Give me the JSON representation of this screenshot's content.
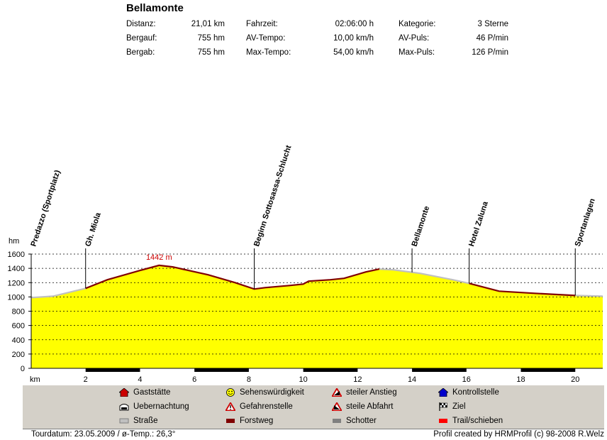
{
  "header": {
    "title": "Bellamonte",
    "stats": [
      {
        "label": "Distanz:",
        "value": "21,01 km"
      },
      {
        "label": "Bergauf:",
        "value": "755 hm"
      },
      {
        "label": "Bergab:",
        "value": "755 hm"
      },
      {
        "label": "Fahrzeit:",
        "value": "02:06:00 h"
      },
      {
        "label": "AV-Tempo:",
        "value": "10,00 km/h"
      },
      {
        "label": "Max-Tempo:",
        "value": "54,00 km/h"
      },
      {
        "label": "Kategorie:",
        "value": "3 Sterne"
      },
      {
        "label": "AV-Puls:",
        "value": "46 P/min"
      },
      {
        "label": "Max-Puls:",
        "value": "126 P/min"
      }
    ]
  },
  "chart_data": {
    "type": "area",
    "xlabel": "km",
    "ylabel": "hm",
    "xlim": [
      0,
      21.01
    ],
    "ylim": [
      0,
      1600
    ],
    "x_ticks": [
      2,
      4,
      6,
      8,
      10,
      12,
      14,
      16,
      18,
      20
    ],
    "y_ticks": [
      0,
      200,
      400,
      600,
      800,
      1000,
      1200,
      1400,
      1600
    ],
    "grid": "horizontal-dotted",
    "fill_color": "#ffff00",
    "profile": {
      "x": [
        0,
        0.8,
        2.0,
        2.8,
        4.0,
        4.7,
        5.2,
        6.5,
        7.5,
        8.2,
        8.6,
        9.5,
        10.0,
        10.2,
        11.0,
        11.5,
        12.3,
        12.8,
        13.3,
        14.3,
        15.5,
        16.1,
        17.2,
        18.5,
        20.0,
        21.01
      ],
      "y": [
        990,
        1010,
        1120,
        1240,
        1370,
        1442,
        1420,
        1310,
        1200,
        1110,
        1130,
        1160,
        1180,
        1220,
        1240,
        1260,
        1350,
        1390,
        1380,
        1330,
        1240,
        1190,
        1080,
        1050,
        1020,
        1010
      ]
    },
    "surfaces": [
      {
        "from": 0,
        "to": 2.0,
        "type": "Straße",
        "color": "#c0c0c0"
      },
      {
        "from": 2.0,
        "to": 12.8,
        "type": "Forstweg",
        "color": "#800000"
      },
      {
        "from": 12.8,
        "to": 16.1,
        "type": "Straße",
        "color": "#c0c0c0"
      },
      {
        "from": 16.1,
        "to": 20.0,
        "type": "Forstweg",
        "color": "#800000"
      },
      {
        "from": 20.0,
        "to": 21.01,
        "type": "Straße",
        "color": "#c0c0c0"
      }
    ],
    "km_bar_segments": [
      [
        2.0,
        4.0
      ],
      [
        6.0,
        8.0
      ],
      [
        10.0,
        12.0
      ],
      [
        14.0,
        16.0
      ],
      [
        18.0,
        20.0
      ]
    ],
    "waypoints": [
      {
        "x": 0.0,
        "label": "Predazzo (Sportplatz)"
      },
      {
        "x": 2.0,
        "label": "Gh. Miola"
      },
      {
        "x": 8.2,
        "label": "Beginn Sottosassa-Schlucht"
      },
      {
        "x": 14.0,
        "label": "Bellamonte"
      },
      {
        "x": 16.1,
        "label": "Hotel Zaluna"
      },
      {
        "x": 20.0,
        "label": "Sportanlagen"
      }
    ],
    "max_annotation": {
      "x": 4.7,
      "y": 1442,
      "label": "1442 m"
    }
  },
  "legend": {
    "items": [
      {
        "label": "Gaststätte",
        "icon": "house-red-icon"
      },
      {
        "label": "Uebernachtung",
        "icon": "bed-icon"
      },
      {
        "label": "Straße",
        "icon": "road-gray-icon",
        "color": "#c0c0c0"
      },
      {
        "label": "Sehenswürdigkeit",
        "icon": "smiley-icon"
      },
      {
        "label": "Gefahrenstelle",
        "icon": "warning-triangle-icon"
      },
      {
        "label": "Forstweg",
        "icon": "forest-road-icon",
        "color": "#800000"
      },
      {
        "label": "steiler Anstieg",
        "icon": "steep-ascent-icon"
      },
      {
        "label": "steile Abfahrt",
        "icon": "steep-descent-icon"
      },
      {
        "label": "Schotter",
        "icon": "gravel-icon",
        "color": "#808080"
      },
      {
        "label": "Kontrollstelle",
        "icon": "checkpoint-blue-icon"
      },
      {
        "label": "Ziel",
        "icon": "finish-flag-icon"
      },
      {
        "label": "Trail/schieben",
        "icon": "trail-red-icon",
        "color": "#ff0000"
      }
    ]
  },
  "footer": {
    "left": "Tourdatum: 23.05.2009  /  ø-Temp.: 26,3°",
    "right": "Profil created by HRMProfil (c) 98-2008 R.Welz"
  }
}
